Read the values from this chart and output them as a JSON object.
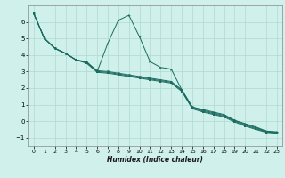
{
  "title": "",
  "xlabel": "Humidex (Indice chaleur)",
  "ylabel": "",
  "bg_color": "#cff0eb",
  "grid_color": "#b0d8d2",
  "line_color": "#1a6b60",
  "xlim": [
    -0.5,
    23.5
  ],
  "ylim": [
    -1.5,
    7.0
  ],
  "xticks": [
    0,
    1,
    2,
    3,
    4,
    5,
    6,
    7,
    8,
    9,
    10,
    11,
    12,
    13,
    14,
    15,
    16,
    17,
    18,
    19,
    20,
    21,
    22,
    23
  ],
  "yticks": [
    -1,
    0,
    1,
    2,
    3,
    4,
    5,
    6
  ],
  "lines": [
    {
      "x": [
        0,
        1,
        2,
        3,
        4,
        5,
        6,
        7,
        8,
        9,
        10,
        11,
        12,
        13,
        14,
        15,
        16,
        17,
        18,
        19,
        20,
        21,
        22,
        23
      ],
      "y": [
        6.5,
        5.0,
        4.4,
        4.1,
        3.7,
        3.6,
        3.0,
        4.7,
        6.1,
        6.4,
        5.1,
        3.6,
        3.25,
        3.15,
        1.9,
        0.85,
        0.7,
        0.55,
        0.4,
        0.05,
        -0.15,
        -0.35,
        -0.6,
        -0.65
      ]
    },
    {
      "x": [
        0,
        1,
        2,
        3,
        4,
        5,
        6,
        7,
        8,
        9,
        10,
        11,
        12,
        13,
        14,
        15,
        16,
        17,
        18,
        19,
        20,
        21,
        22,
        23
      ],
      "y": [
        6.5,
        5.0,
        4.4,
        4.1,
        3.7,
        3.55,
        3.05,
        3.0,
        2.9,
        2.8,
        2.7,
        2.6,
        2.5,
        2.4,
        1.9,
        0.85,
        0.65,
        0.5,
        0.35,
        0.05,
        -0.2,
        -0.4,
        -0.62,
        -0.67
      ]
    },
    {
      "x": [
        0,
        1,
        2,
        3,
        4,
        5,
        6,
        7,
        8,
        9,
        10,
        11,
        12,
        13,
        14,
        15,
        16,
        17,
        18,
        19,
        20,
        21,
        22,
        23
      ],
      "y": [
        6.5,
        5.0,
        4.4,
        4.1,
        3.7,
        3.55,
        3.0,
        2.95,
        2.85,
        2.75,
        2.65,
        2.55,
        2.45,
        2.35,
        1.85,
        0.8,
        0.6,
        0.45,
        0.3,
        0.0,
        -0.25,
        -0.45,
        -0.65,
        -0.7
      ]
    },
    {
      "x": [
        0,
        1,
        2,
        3,
        4,
        5,
        6,
        7,
        8,
        9,
        10,
        11,
        12,
        13,
        14,
        15,
        16,
        17,
        18,
        19,
        20,
        21,
        22,
        23
      ],
      "y": [
        6.5,
        5.0,
        4.4,
        4.1,
        3.7,
        3.5,
        2.95,
        2.9,
        2.8,
        2.7,
        2.6,
        2.5,
        2.4,
        2.3,
        1.8,
        0.75,
        0.55,
        0.4,
        0.25,
        -0.05,
        -0.3,
        -0.5,
        -0.68,
        -0.73
      ]
    }
  ],
  "markers": [
    {
      "x": [
        0,
        1,
        2,
        3,
        4,
        5,
        6,
        7,
        8,
        9,
        10,
        14,
        15,
        22,
        23
      ],
      "idx": 0
    },
    {
      "x": [
        0,
        1,
        2,
        3,
        4,
        5,
        14,
        15,
        22,
        23
      ],
      "idx": 1
    },
    {
      "x": [
        0,
        1,
        2,
        3,
        4,
        5,
        14,
        15,
        22,
        23
      ],
      "idx": 2
    },
    {
      "x": [
        0,
        1,
        2,
        3,
        4,
        5,
        14,
        15,
        22,
        23
      ],
      "idx": 3
    }
  ]
}
